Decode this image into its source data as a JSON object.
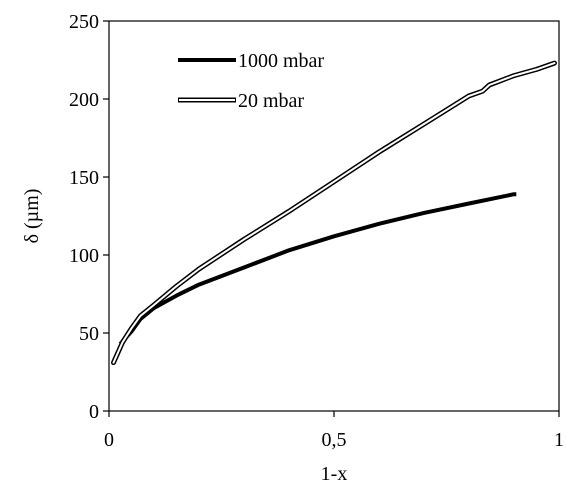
{
  "chart_data": {
    "type": "line",
    "title": "",
    "xlabel": "1-x",
    "ylabel": "δ (µm)",
    "xlim": [
      0,
      1
    ],
    "ylim": [
      0,
      250
    ],
    "x_ticks": [
      0,
      0.5,
      1
    ],
    "x_tick_labels": [
      "0",
      "0,5",
      "1"
    ],
    "y_ticks": [
      0,
      50,
      100,
      150,
      200,
      250
    ],
    "y_tick_labels": [
      "0",
      "50",
      "100",
      "150",
      "200",
      "250"
    ],
    "grid": false,
    "legend": "top-left",
    "series": [
      {
        "name": "1000 mbar",
        "style": "thick-solid",
        "color": "#000000",
        "x": [
          0.025,
          0.05,
          0.07,
          0.1,
          0.15,
          0.2,
          0.3,
          0.4,
          0.5,
          0.6,
          0.7,
          0.8,
          0.9,
          0.905
        ],
        "y": [
          43,
          51,
          59,
          66,
          74,
          81,
          92,
          103,
          112,
          120,
          127,
          133,
          139,
          139
        ]
      },
      {
        "name": "20 mbar",
        "style": "double-line",
        "color": "#000000",
        "x": [
          0.01,
          0.03,
          0.05,
          0.07,
          0.1,
          0.15,
          0.2,
          0.3,
          0.4,
          0.5,
          0.6,
          0.7,
          0.8,
          0.83,
          0.845,
          0.9,
          0.95,
          0.99
        ],
        "y": [
          31,
          44,
          53,
          61,
          68,
          80,
          91,
          110,
          128,
          147,
          166,
          184,
          202,
          205,
          209,
          215,
          219,
          223
        ]
      }
    ]
  }
}
